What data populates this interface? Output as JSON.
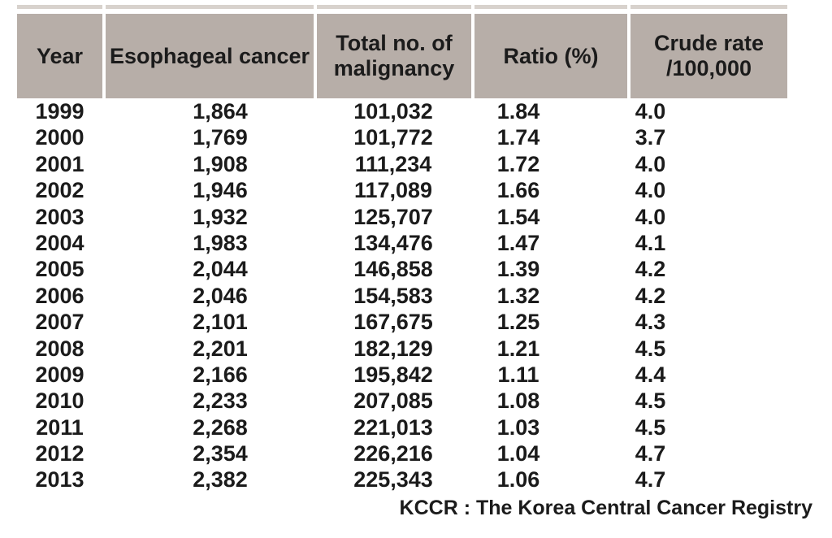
{
  "colors": {
    "background": "#ffffff",
    "header_bg": "#b7aea8",
    "top_border": "#d8d2cd",
    "text": "#1b1b1b"
  },
  "table": {
    "columns": [
      {
        "line1": "Year"
      },
      {
        "line1": "Esophageal cancer"
      },
      {
        "line1": "Total no. of",
        "line2": "malignancy"
      },
      {
        "line1": "Ratio (%)"
      },
      {
        "line1": "Crude rate",
        "line2": "/100,000"
      }
    ],
    "rows": [
      {
        "year": "1999",
        "esophageal": "1,864",
        "total": "101,032",
        "ratio": "1.84",
        "crude": "4.0"
      },
      {
        "year": "2000",
        "esophageal": "1,769",
        "total": "101,772",
        "ratio": "1.74",
        "crude": "3.7"
      },
      {
        "year": "2001",
        "esophageal": "1,908",
        "total": "111,234",
        "ratio": "1.72",
        "crude": "4.0"
      },
      {
        "year": "2002",
        "esophageal": "1,946",
        "total": "117,089",
        "ratio": "1.66",
        "crude": "4.0"
      },
      {
        "year": "2003",
        "esophageal": "1,932",
        "total": "125,707",
        "ratio": "1.54",
        "crude": "4.0"
      },
      {
        "year": "2004",
        "esophageal": "1,983",
        "total": "134,476",
        "ratio": "1.47",
        "crude": "4.1"
      },
      {
        "year": "2005",
        "esophageal": "2,044",
        "total": "146,858",
        "ratio": "1.39",
        "crude": "4.2"
      },
      {
        "year": "2006",
        "esophageal": "2,046",
        "total": "154,583",
        "ratio": "1.32",
        "crude": "4.2"
      },
      {
        "year": "2007",
        "esophageal": "2,101",
        "total": "167,675",
        "ratio": "1.25",
        "crude": "4.3"
      },
      {
        "year": "2008",
        "esophageal": "2,201",
        "total": "182,129",
        "ratio": "1.21",
        "crude": "4.5"
      },
      {
        "year": "2009",
        "esophageal": "2,166",
        "total": "195,842",
        "ratio": "1.11",
        "crude": "4.4"
      },
      {
        "year": "2010",
        "esophageal": "2,233",
        "total": "207,085",
        "ratio": "1.08",
        "crude": "4.5"
      },
      {
        "year": "2011",
        "esophageal": "2,268",
        "total": "221,013",
        "ratio": "1.03",
        "crude": "4.5"
      },
      {
        "year": "2012",
        "esophageal": "2,354",
        "total": "226,216",
        "ratio": "1.04",
        "crude": "4.7"
      },
      {
        "year": "2013",
        "esophageal": "2,382",
        "total": "225,343",
        "ratio": "1.06",
        "crude": "4.7"
      }
    ]
  },
  "footer": {
    "note": "KCCR : The Korea Central Cancer Registry"
  },
  "chart_data": {
    "type": "table",
    "columns": [
      "Year",
      "Esophageal cancer",
      "Total no. of malignancy",
      "Ratio (%)",
      "Crude rate /100,000"
    ],
    "rows": [
      [
        1999,
        1864,
        101032,
        1.84,
        4.0
      ],
      [
        2000,
        1769,
        101772,
        1.74,
        3.7
      ],
      [
        2001,
        1908,
        111234,
        1.72,
        4.0
      ],
      [
        2002,
        1946,
        117089,
        1.66,
        4.0
      ],
      [
        2003,
        1932,
        125707,
        1.54,
        4.0
      ],
      [
        2004,
        1983,
        134476,
        1.47,
        4.1
      ],
      [
        2005,
        2044,
        146858,
        1.39,
        4.2
      ],
      [
        2006,
        2046,
        154583,
        1.32,
        4.2
      ],
      [
        2007,
        2101,
        167675,
        1.25,
        4.3
      ],
      [
        2008,
        2201,
        182129,
        1.21,
        4.5
      ],
      [
        2009,
        2166,
        195842,
        1.11,
        4.4
      ],
      [
        2010,
        2233,
        207085,
        1.08,
        4.5
      ],
      [
        2011,
        2268,
        221013,
        1.03,
        4.5
      ],
      [
        2012,
        2354,
        226216,
        1.04,
        4.7
      ],
      [
        2013,
        2382,
        225343,
        1.06,
        4.7
      ]
    ],
    "annotation": "KCCR : The Korea Central Cancer Registry"
  }
}
